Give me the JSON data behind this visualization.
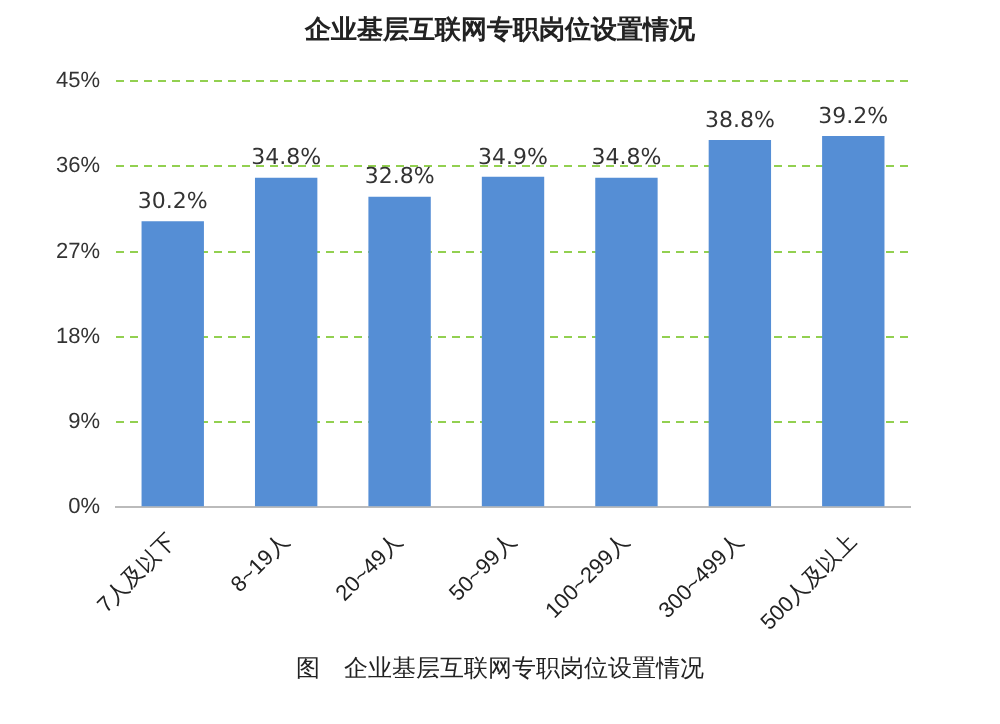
{
  "chart_data": {
    "type": "bar",
    "title": "企业基层互联网专职岗位设置情况",
    "categories": [
      "7人及以下",
      "8~19人",
      "20~49人",
      "50~99人",
      "100~299人",
      "300~499人",
      "500人及以上"
    ],
    "values": [
      30.2,
      34.8,
      32.8,
      34.9,
      34.8,
      38.8,
      39.2
    ],
    "value_labels": [
      "30.2%",
      "34.8%",
      "32.8%",
      "34.9%",
      "34.8%",
      "38.8%",
      "39.2%"
    ],
    "color": "#558ed5",
    "ylim": [
      0,
      45
    ],
    "yticks": [
      {
        "value": 0,
        "label": "0%"
      },
      {
        "value": 9,
        "label": "9%"
      },
      {
        "value": 18,
        "label": "18%"
      },
      {
        "value": 27,
        "label": "27%"
      },
      {
        "value": 36,
        "label": "36%"
      },
      {
        "value": 45,
        "label": "45%"
      }
    ],
    "grid": "y",
    "annotations": [
      "图　企业基层互联网专职岗位设置情况"
    ]
  }
}
